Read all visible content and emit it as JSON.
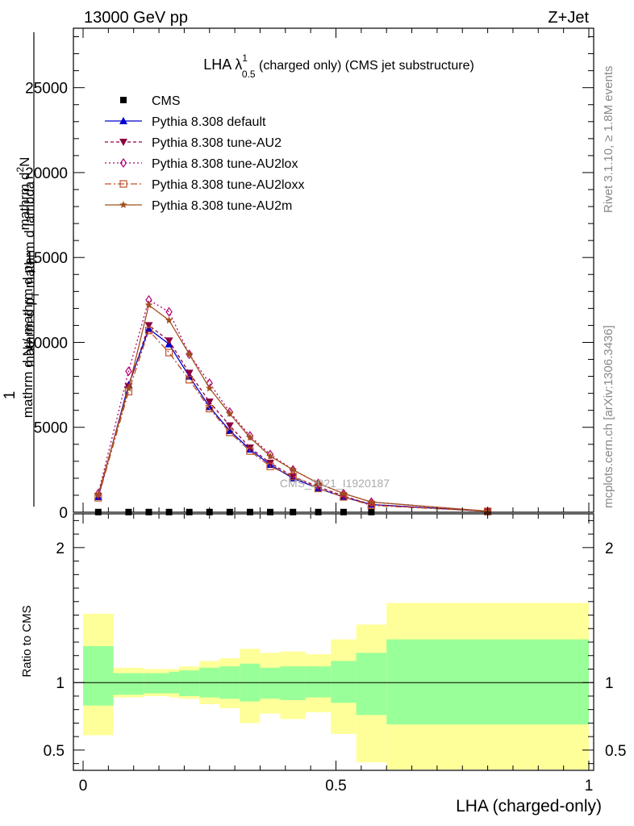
{
  "header": {
    "left": "13000 GeV pp",
    "right": "Z+Jet"
  },
  "side": {
    "rivet": "Rivet 3.1.10, ≥ 1.8M events",
    "mcplots": "mcplots.cern.ch [arXiv:1306.3436]"
  },
  "watermark": "CMS_2021_I1920187",
  "chart_data": [
    {
      "type": "line",
      "title_main": "LHA λ",
      "title_sup": "1",
      "title_sub": "0.5",
      "title_rest": "(charged only) (CMS jet substructure)",
      "ylabel_top": "1",
      "ylabel_frac_num": "mathrm d",
      "ylabel_frac_num_sup": "2",
      "ylabel_frac_num2": "N",
      "ylabel_bottom": "mathrm d N / mathrm d p",
      "ylabel_bottom_sub": "T",
      "ylabel_den": "mathrm d p",
      "ylabel_den_sub": "T",
      "ylabel_den2": "mathrm d lambda",
      "ylim": [
        0,
        28500
      ],
      "yticks": [
        {
          "v": 0,
          "label": "0"
        },
        {
          "v": 5000,
          "label": "5000"
        },
        {
          "v": 10000,
          "label": "10000"
        },
        {
          "v": 15000,
          "label": "15000"
        },
        {
          "v": 20000,
          "label": "20000"
        },
        {
          "v": 25000,
          "label": "25000"
        }
      ],
      "xlim": [
        0,
        1
      ],
      "x": [
        0.03,
        0.09,
        0.13,
        0.17,
        0.21,
        0.25,
        0.29,
        0.33,
        0.37,
        0.415,
        0.465,
        0.515,
        0.57,
        0.8
      ],
      "cms": [
        10,
        10,
        10,
        10,
        10,
        10,
        10,
        10,
        10,
        10,
        10,
        10,
        10,
        10
      ],
      "series": [
        {
          "name": "CMS",
          "color": "#000000",
          "marker": "square",
          "dash": "",
          "ref": "cms"
        },
        {
          "name": "Pythia 8.308 default",
          "color": "#0000cc",
          "marker": "triangle-up",
          "dash": "",
          "values": [
            900,
            7500,
            10800,
            9900,
            8000,
            6200,
            4800,
            3700,
            2800,
            2000,
            1400,
            900,
            450,
            50
          ]
        },
        {
          "name": "Pythia 8.308 tune-AU2",
          "color": "#8b0040",
          "marker": "triangle-down",
          "dash": "4,3",
          "values": [
            950,
            7400,
            11000,
            10100,
            8200,
            6500,
            5100,
            3800,
            2900,
            2100,
            1500,
            950,
            450,
            50
          ]
        },
        {
          "name": "Pythia 8.308 tune-AU2lox",
          "color": "#b0006e",
          "marker": "diamond",
          "dash": "2,3",
          "values": [
            1100,
            8300,
            12500,
            11800,
            9300,
            7600,
            5900,
            4500,
            3400,
            2500,
            1700,
            1100,
            600,
            60
          ]
        },
        {
          "name": "Pythia 8.308 tune-AU2loxx",
          "color": "#c0502a",
          "marker": "square-open",
          "dash": "8,3,2,3",
          "values": [
            850,
            7100,
            10700,
            9400,
            7800,
            6100,
            4700,
            3600,
            2700,
            2100,
            1400,
            900,
            400,
            50
          ]
        },
        {
          "name": "Pythia 8.308 tune-AU2m",
          "color": "#a0501e",
          "marker": "star",
          "dash": "",
          "values": [
            1050,
            7300,
            12200,
            11300,
            9300,
            7300,
            5800,
            4400,
            3300,
            2500,
            1700,
            1100,
            600,
            60
          ]
        }
      ]
    },
    {
      "type": "area",
      "ylabel": "Ratio to CMS",
      "ylim": [
        0.35,
        2.25
      ],
      "xlabel": "LHA (charged-only)",
      "xticks": [
        {
          "v": 0,
          "label": "0"
        },
        {
          "v": 0.5,
          "label": "0.5"
        },
        {
          "v": 1,
          "label": "1"
        }
      ],
      "yticks": [
        {
          "v": 0.5,
          "label": "0.5"
        },
        {
          "v": 1,
          "label": "1"
        },
        {
          "v": 2,
          "label": "2"
        }
      ],
      "bands": [
        {
          "x0": 0.0,
          "x1": 0.06,
          "g_lo": 0.83,
          "g_hi": 1.27,
          "y_lo": 0.61,
          "y_hi": 1.51
        },
        {
          "x0": 0.06,
          "x1": 0.12,
          "g_lo": 0.91,
          "g_hi": 1.07,
          "y_lo": 0.89,
          "y_hi": 1.11
        },
        {
          "x0": 0.12,
          "x1": 0.17,
          "g_lo": 0.92,
          "g_hi": 1.07,
          "y_lo": 0.9,
          "y_hi": 1.1
        },
        {
          "x0": 0.17,
          "x1": 0.19,
          "g_lo": 0.92,
          "g_hi": 1.08,
          "y_lo": 0.89,
          "y_hi": 1.1
        },
        {
          "x0": 0.19,
          "x1": 0.23,
          "g_lo": 0.9,
          "g_hi": 1.09,
          "y_lo": 0.88,
          "y_hi": 1.12
        },
        {
          "x0": 0.23,
          "x1": 0.27,
          "g_lo": 0.89,
          "g_hi": 1.11,
          "y_lo": 0.84,
          "y_hi": 1.16
        },
        {
          "x0": 0.27,
          "x1": 0.31,
          "g_lo": 0.88,
          "g_hi": 1.12,
          "y_lo": 0.81,
          "y_hi": 1.18
        },
        {
          "x0": 0.31,
          "x1": 0.35,
          "g_lo": 0.86,
          "g_hi": 1.14,
          "y_lo": 0.7,
          "y_hi": 1.25
        },
        {
          "x0": 0.35,
          "x1": 0.39,
          "g_lo": 0.88,
          "g_hi": 1.11,
          "y_lo": 0.77,
          "y_hi": 1.22
        },
        {
          "x0": 0.39,
          "x1": 0.44,
          "g_lo": 0.87,
          "g_hi": 1.12,
          "y_lo": 0.73,
          "y_hi": 1.23
        },
        {
          "x0": 0.44,
          "x1": 0.49,
          "g_lo": 0.89,
          "g_hi": 1.12,
          "y_lo": 0.78,
          "y_hi": 1.21
        },
        {
          "x0": 0.49,
          "x1": 0.54,
          "g_lo": 0.85,
          "g_hi": 1.16,
          "y_lo": 0.62,
          "y_hi": 1.32
        },
        {
          "x0": 0.54,
          "x1": 0.6,
          "g_lo": 0.76,
          "g_hi": 1.22,
          "y_lo": 0.41,
          "y_hi": 1.43
        },
        {
          "x0": 0.6,
          "x1": 1.0,
          "g_lo": 0.69,
          "g_hi": 1.32,
          "y_lo": 0.35,
          "y_hi": 1.59
        }
      ]
    }
  ],
  "colors": {
    "green": "#99ff99",
    "yellow": "#ffff99",
    "frame": "#000000"
  }
}
